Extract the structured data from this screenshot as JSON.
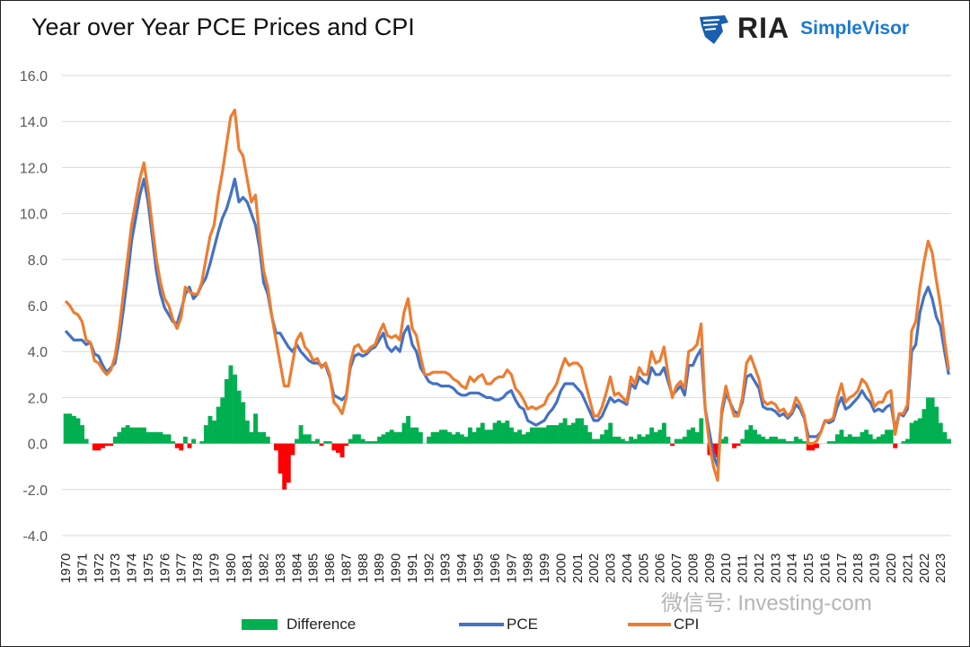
{
  "chart_data": {
    "type": "line",
    "title": "Year over Year PCE Prices and CPI",
    "ylim": [
      -4,
      16
    ],
    "yticks": [
      "16.0",
      "14.0",
      "12.0",
      "10.0",
      "8.0",
      "6.0",
      "4.0",
      "2.0",
      "0.0",
      "-2.0",
      "-4.0"
    ],
    "ytick_values": [
      16,
      14,
      12,
      10,
      8,
      6,
      4,
      2,
      0,
      -2,
      -4
    ],
    "xticks": [
      "1970",
      "1971",
      "1972",
      "1973",
      "1974",
      "1975",
      "1976",
      "1977",
      "1978",
      "1979",
      "1980",
      "1981",
      "1982",
      "1983",
      "1984",
      "1985",
      "1986",
      "1987",
      "1988",
      "1989",
      "1990",
      "1991",
      "1992",
      "1993",
      "1994",
      "1995",
      "1996",
      "1997",
      "1998",
      "1999",
      "2000",
      "2001",
      "2002",
      "2003",
      "2004",
      "2005",
      "2006",
      "2007",
      "2008",
      "2009",
      "2010",
      "2011",
      "2012",
      "2013",
      "2014",
      "2015",
      "2016",
      "2017",
      "2018",
      "2019",
      "2020",
      "2021",
      "2022",
      "2023"
    ],
    "x_start": 1970,
    "x_step": 0.25,
    "grid": true,
    "legend": "bottom",
    "series": [
      {
        "name": "PCE",
        "color": "#4472C4",
        "values": [
          4.9,
          4.7,
          4.5,
          4.5,
          4.5,
          4.3,
          4.4,
          3.9,
          3.8,
          3.4,
          3.1,
          3.3,
          3.5,
          4.5,
          5.8,
          7.2,
          8.8,
          9.8,
          10.8,
          11.5,
          10.5,
          9.0,
          7.5,
          6.5,
          5.9,
          5.6,
          5.3,
          5.2,
          5.8,
          6.5,
          6.8,
          6.3,
          6.5,
          6.9,
          7.2,
          7.8,
          8.5,
          9.2,
          9.8,
          10.2,
          10.8,
          11.5,
          10.5,
          10.7,
          10.5,
          10.0,
          9.5,
          8.5,
          7.0,
          6.5,
          5.5,
          4.8,
          4.8,
          4.5,
          4.2,
          4.0,
          4.3,
          4.0,
          3.8,
          3.6,
          3.5,
          3.5,
          3.4,
          3.4,
          2.9,
          2.1,
          2.0,
          1.9,
          2.1,
          3.3,
          3.8,
          3.9,
          3.8,
          3.9,
          4.1,
          4.2,
          4.5,
          4.8,
          4.2,
          4.0,
          4.2,
          4.0,
          4.8,
          5.1,
          4.3,
          4.0,
          3.3,
          3.0,
          2.7,
          2.6,
          2.6,
          2.5,
          2.5,
          2.5,
          2.4,
          2.2,
          2.1,
          2.1,
          2.2,
          2.2,
          2.2,
          2.1,
          2.0,
          2.0,
          1.9,
          1.9,
          2.0,
          2.2,
          2.3,
          1.9,
          1.6,
          1.5,
          1.0,
          0.9,
          0.8,
          0.9,
          1.0,
          1.3,
          1.5,
          1.8,
          2.3,
          2.6,
          2.6,
          2.6,
          2.4,
          2.2,
          1.8,
          1.4,
          1.0,
          1.0,
          1.2,
          1.6,
          2.0,
          1.8,
          1.9,
          1.8,
          1.7,
          2.6,
          2.4,
          2.9,
          2.7,
          2.6,
          3.3,
          3.0,
          3.0,
          3.3,
          2.7,
          2.1,
          2.3,
          2.5,
          2.1,
          3.4,
          3.4,
          3.8,
          4.1,
          1.5,
          0.5,
          -0.5,
          -1.0,
          1.3,
          2.2,
          1.8,
          1.4,
          1.3,
          1.8,
          2.9,
          3.0,
          2.7,
          2.4,
          1.6,
          1.5,
          1.5,
          1.4,
          1.2,
          1.3,
          1.1,
          1.3,
          1.7,
          1.5,
          1.1,
          0.3,
          0.3,
          0.3,
          0.5,
          1.0,
          0.9,
          1.0,
          1.6,
          2.0,
          1.5,
          1.6,
          1.8,
          2.0,
          2.3,
          2.0,
          1.8,
          1.4,
          1.5,
          1.4,
          1.6,
          1.7,
          0.6,
          1.3,
          1.2,
          1.5,
          4.0,
          4.3,
          5.7,
          6.4,
          6.8,
          6.3,
          5.5,
          5.1,
          4.0,
          3.0
        ]
      },
      {
        "name": "CPI",
        "color": "#ED7D31",
        "values": [
          6.2,
          6.0,
          5.7,
          5.6,
          5.3,
          4.5,
          4.4,
          3.6,
          3.5,
          3.2,
          3.0,
          3.2,
          3.8,
          5.0,
          6.5,
          8.0,
          9.5,
          10.5,
          11.5,
          12.2,
          11.0,
          9.5,
          8.0,
          7.0,
          6.3,
          6.0,
          5.4,
          5.0,
          5.5,
          6.8,
          6.6,
          6.5,
          6.5,
          7.0,
          8.0,
          9.0,
          9.5,
          10.8,
          11.8,
          13.0,
          14.2,
          14.5,
          12.8,
          12.5,
          11.5,
          10.5,
          10.8,
          9.0,
          7.5,
          6.8,
          5.5,
          4.5,
          3.5,
          2.5,
          2.5,
          3.5,
          4.5,
          4.8,
          4.2,
          4.0,
          3.6,
          3.7,
          3.3,
          3.5,
          3.0,
          1.8,
          1.6,
          1.3,
          2.0,
          3.5,
          4.2,
          4.3,
          4.0,
          4.0,
          4.2,
          4.3,
          4.8,
          5.2,
          4.7,
          4.6,
          4.7,
          4.5,
          5.7,
          6.3,
          5.0,
          4.7,
          3.8,
          3.0,
          3.0,
          3.1,
          3.1,
          3.1,
          3.1,
          3.0,
          2.8,
          2.7,
          2.5,
          2.4,
          2.9,
          2.7,
          2.9,
          3.0,
          2.6,
          2.6,
          2.8,
          2.9,
          2.9,
          3.2,
          3.0,
          2.4,
          2.2,
          1.9,
          1.5,
          1.6,
          1.5,
          1.6,
          1.7,
          2.1,
          2.3,
          2.6,
          3.2,
          3.7,
          3.4,
          3.5,
          3.5,
          3.3,
          2.6,
          1.9,
          1.2,
          1.2,
          1.6,
          2.2,
          2.9,
          2.1,
          2.2,
          2.0,
          1.8,
          2.9,
          2.6,
          3.3,
          3.0,
          3.0,
          4.0,
          3.5,
          3.6,
          4.2,
          3.0,
          2.0,
          2.5,
          2.7,
          2.4,
          4.0,
          4.1,
          4.3,
          5.2,
          1.5,
          0.0,
          -1.0,
          -1.6,
          1.5,
          2.5,
          1.8,
          1.2,
          1.2,
          2.0,
          3.5,
          3.8,
          3.3,
          2.8,
          1.9,
          1.7,
          1.8,
          1.7,
          1.4,
          1.5,
          1.2,
          1.4,
          2.0,
          1.7,
          1.2,
          0.0,
          0.0,
          0.1,
          0.5,
          1.0,
          1.0,
          1.1,
          2.0,
          2.6,
          1.8,
          2.0,
          2.1,
          2.3,
          2.8,
          2.6,
          2.2,
          1.6,
          1.8,
          1.8,
          2.2,
          2.3,
          0.4,
          1.3,
          1.3,
          1.7,
          4.9,
          5.3,
          6.8,
          7.9,
          8.8,
          8.3,
          7.1,
          6.0,
          4.5,
          3.2
        ]
      },
      {
        "name": "Difference",
        "color": "#00B050",
        "neg_color": "#FF0000",
        "formula": "CPI - PCE"
      }
    ]
  },
  "watermark": "微信号: Investing-com",
  "logo": {
    "ria": "RIA",
    "name": "SimpleVisor"
  }
}
